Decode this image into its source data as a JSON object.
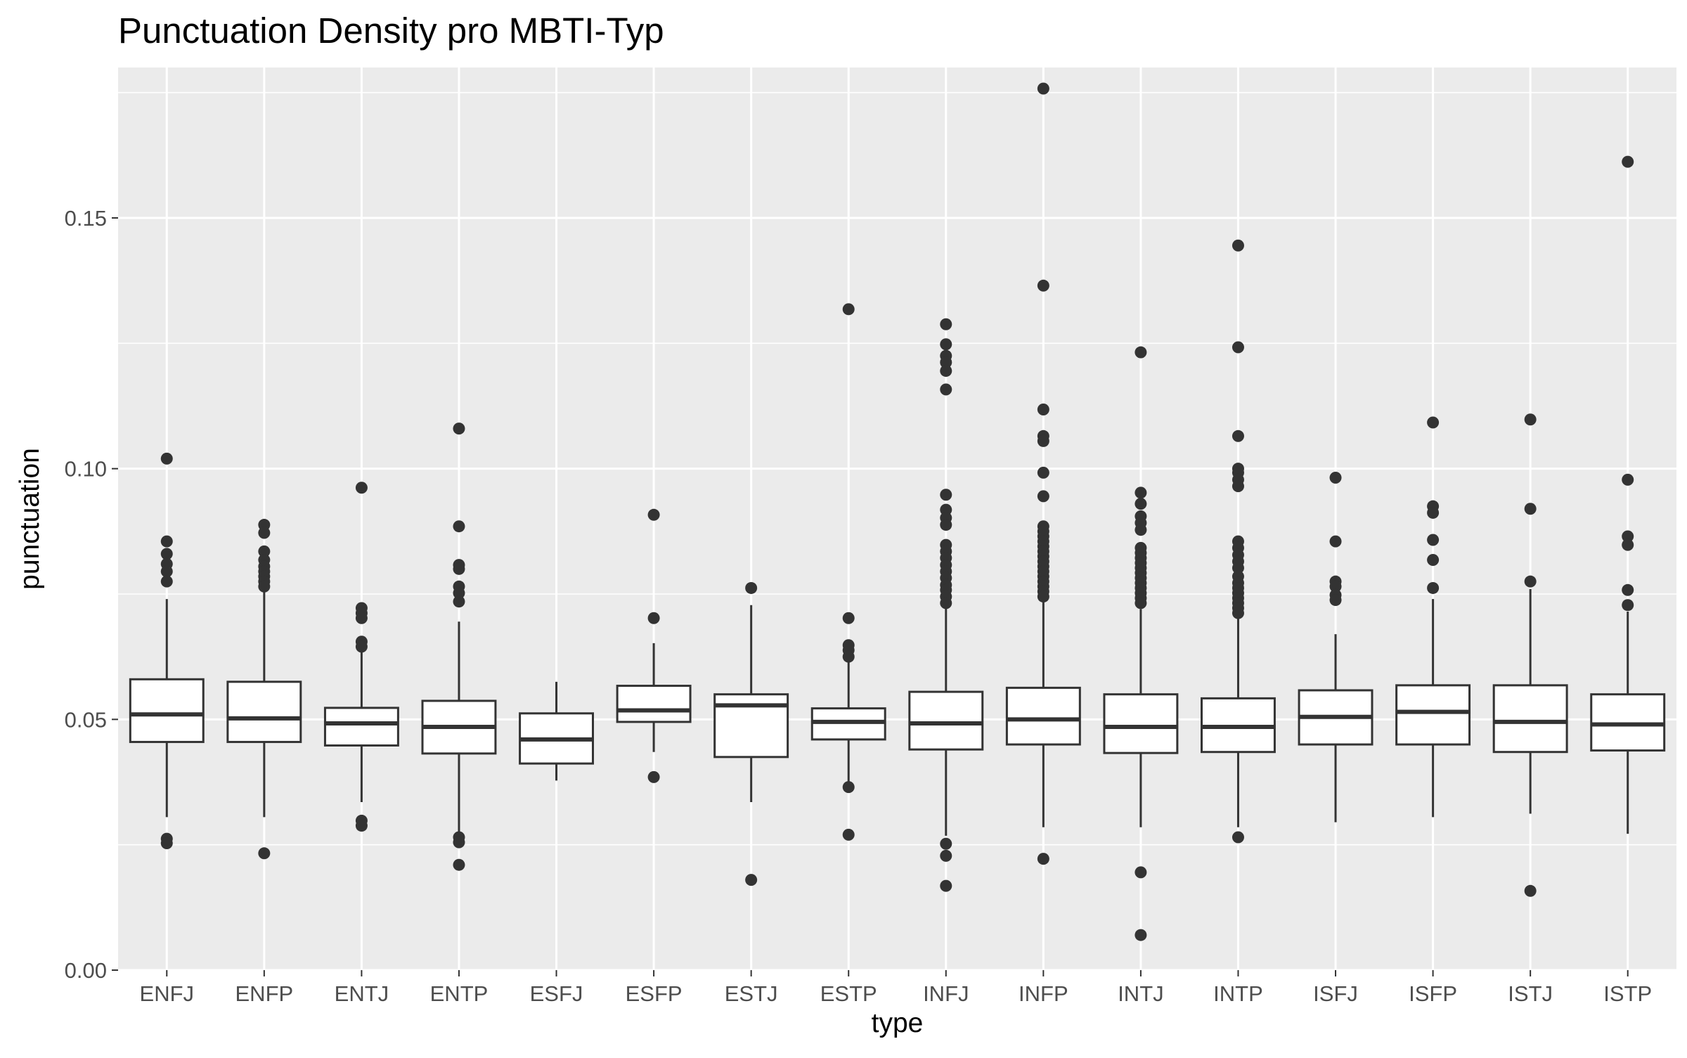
{
  "chart_data": {
    "type": "box",
    "title": "Punctuation Density pro MBTI-Typ",
    "xlabel": "type",
    "ylabel": "punctuation",
    "ylim": [
      0,
      0.18
    ],
    "yticks": [
      0.0,
      0.05,
      0.1,
      0.15
    ],
    "ytick_labels": [
      "0.00",
      "0.05",
      "0.10",
      "0.15"
    ],
    "grid": true,
    "legend": "none",
    "colors": {
      "panel": "#ebebeb",
      "grid": "#ffffff",
      "box_fill": "#ffffff",
      "box_stroke": "#333333",
      "point": "#333333",
      "text": "#4d4d4d"
    },
    "categories": [
      "ENFJ",
      "ENFP",
      "ENTJ",
      "ENTP",
      "ESFJ",
      "ESFP",
      "ESTJ",
      "ESTP",
      "INFJ",
      "INFP",
      "INTJ",
      "INTP",
      "ISFJ",
      "ISFP",
      "ISTJ",
      "ISTP"
    ],
    "boxes": [
      {
        "type": "ENFJ",
        "whisker_low": 0.0305,
        "q1": 0.0455,
        "median": 0.051,
        "q3": 0.058,
        "whisker_high": 0.074,
        "outliers": [
          0.102,
          0.0855,
          0.083,
          0.081,
          0.0795,
          0.0775,
          0.0262,
          0.0253
        ]
      },
      {
        "type": "ENFP",
        "whisker_low": 0.0305,
        "q1": 0.0455,
        "median": 0.0502,
        "q3": 0.0575,
        "whisker_high": 0.076,
        "outliers": [
          0.0888,
          0.0872,
          0.0835,
          0.0818,
          0.0805,
          0.0795,
          0.0785,
          0.0775,
          0.0765,
          0.0233
        ]
      },
      {
        "type": "ENTJ",
        "whisker_low": 0.0335,
        "q1": 0.0448,
        "median": 0.0492,
        "q3": 0.0523,
        "whisker_high": 0.064,
        "outliers": [
          0.0962,
          0.0722,
          0.0712,
          0.0702,
          0.0655,
          0.0645,
          0.0298,
          0.0288
        ]
      },
      {
        "type": "ENTP",
        "whisker_low": 0.0275,
        "q1": 0.0432,
        "median": 0.0485,
        "q3": 0.0537,
        "whisker_high": 0.0695,
        "outliers": [
          0.108,
          0.0885,
          0.0808,
          0.08,
          0.0765,
          0.0752,
          0.0735,
          0.0265,
          0.0255,
          0.021
        ]
      },
      {
        "type": "ESFJ",
        "whisker_low": 0.0378,
        "q1": 0.0412,
        "median": 0.046,
        "q3": 0.0512,
        "whisker_high": 0.0575,
        "outliers": []
      },
      {
        "type": "ESFP",
        "whisker_low": 0.0435,
        "q1": 0.0495,
        "median": 0.0518,
        "q3": 0.0567,
        "whisker_high": 0.0652,
        "outliers": [
          0.0908,
          0.0702,
          0.0385
        ]
      },
      {
        "type": "ESTJ",
        "whisker_low": 0.0335,
        "q1": 0.0425,
        "median": 0.0528,
        "q3": 0.055,
        "whisker_high": 0.0728,
        "outliers": [
          0.0762,
          0.018
        ]
      },
      {
        "type": "ESTP",
        "whisker_low": 0.0375,
        "q1": 0.046,
        "median": 0.0495,
        "q3": 0.0522,
        "whisker_high": 0.0615,
        "outliers": [
          0.1318,
          0.0702,
          0.0648,
          0.0638,
          0.0625,
          0.0365,
          0.027
        ]
      },
      {
        "type": "INFJ",
        "whisker_low": 0.0268,
        "q1": 0.044,
        "median": 0.0492,
        "q3": 0.0555,
        "whisker_high": 0.0722,
        "outliers": [
          0.1288,
          0.1248,
          0.1225,
          0.1212,
          0.1195,
          0.1158,
          0.0948,
          0.0918,
          0.0902,
          0.0888,
          0.0848,
          0.0835,
          0.0822,
          0.0808,
          0.0795,
          0.0782,
          0.0768,
          0.0758,
          0.0745,
          0.0732,
          0.0252,
          0.0228,
          0.0168
        ]
      },
      {
        "type": "INFP",
        "whisker_low": 0.0285,
        "q1": 0.045,
        "median": 0.05,
        "q3": 0.0563,
        "whisker_high": 0.0735,
        "outliers": [
          0.1758,
          0.1365,
          0.1118,
          0.1065,
          0.1055,
          0.0992,
          0.0945,
          0.0885,
          0.0875,
          0.0865,
          0.0855,
          0.0845,
          0.0835,
          0.0825,
          0.0815,
          0.0805,
          0.0795,
          0.0785,
          0.0775,
          0.0765,
          0.0755,
          0.0745,
          0.0222
        ]
      },
      {
        "type": "INTJ",
        "whisker_low": 0.0285,
        "q1": 0.0433,
        "median": 0.0485,
        "q3": 0.055,
        "whisker_high": 0.072,
        "outliers": [
          0.1232,
          0.0952,
          0.093,
          0.0905,
          0.0892,
          0.0878,
          0.0842,
          0.0832,
          0.0822,
          0.0812,
          0.0802,
          0.0792,
          0.0782,
          0.0772,
          0.0762,
          0.0752,
          0.0742,
          0.0732,
          0.0195,
          0.007
        ]
      },
      {
        "type": "INTP",
        "whisker_low": 0.0285,
        "q1": 0.0435,
        "median": 0.0485,
        "q3": 0.0542,
        "whisker_high": 0.0705,
        "outliers": [
          0.1445,
          0.1242,
          0.1065,
          0.1,
          0.0992,
          0.0978,
          0.0965,
          0.0855,
          0.0842,
          0.0828,
          0.0815,
          0.0802,
          0.0785,
          0.0772,
          0.0762,
          0.0752,
          0.0742,
          0.0732,
          0.0722,
          0.0712,
          0.0265
        ]
      },
      {
        "type": "ISFJ",
        "whisker_low": 0.0295,
        "q1": 0.045,
        "median": 0.0505,
        "q3": 0.0558,
        "whisker_high": 0.067,
        "outliers": [
          0.0982,
          0.0855,
          0.0775,
          0.0765,
          0.0748,
          0.0738
        ]
      },
      {
        "type": "ISFP",
        "whisker_low": 0.0305,
        "q1": 0.045,
        "median": 0.0515,
        "q3": 0.0568,
        "whisker_high": 0.074,
        "outliers": [
          0.1092,
          0.0925,
          0.0912,
          0.0858,
          0.0818,
          0.0762
        ]
      },
      {
        "type": "ISTJ",
        "whisker_low": 0.0312,
        "q1": 0.0435,
        "median": 0.0495,
        "q3": 0.0568,
        "whisker_high": 0.076,
        "outliers": [
          0.1098,
          0.092,
          0.0775,
          0.0158
        ]
      },
      {
        "type": "ISTP",
        "whisker_low": 0.0272,
        "q1": 0.0438,
        "median": 0.049,
        "q3": 0.055,
        "whisker_high": 0.0715,
        "outliers": [
          0.1612,
          0.0978,
          0.0865,
          0.0848,
          0.0758,
          0.0728
        ]
      }
    ]
  }
}
